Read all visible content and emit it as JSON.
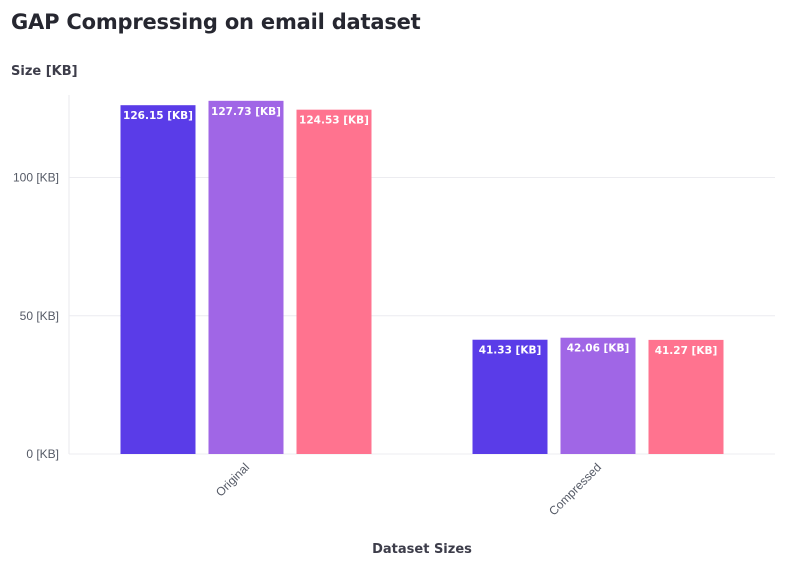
{
  "chart_data": {
    "type": "bar",
    "title": "GAP Compressing on email dataset",
    "ylabel": "Size [KB]",
    "xlabel": "Dataset Sizes",
    "categories": [
      "Original",
      "Compressed"
    ],
    "series": [
      {
        "color": "#5a3ce8",
        "values": [
          126.15,
          41.33
        ],
        "labels": [
          "126.15 [KB]",
          "41.33 [KB]"
        ]
      },
      {
        "color": "#a066e6",
        "values": [
          127.73,
          42.06
        ],
        "labels": [
          "127.73 [KB]",
          "42.06 [KB]"
        ]
      },
      {
        "color": "#ff738f",
        "values": [
          124.53,
          41.27
        ],
        "labels": [
          "124.53 [KB]",
          "41.27 [KB]"
        ]
      }
    ],
    "yticks": [
      0,
      50,
      100
    ],
    "ytick_labels": [
      "0 [KB]",
      "50 [KB]",
      "100 [KB]"
    ],
    "ylim": [
      0,
      131
    ],
    "grid": true,
    "legend": "none"
  }
}
